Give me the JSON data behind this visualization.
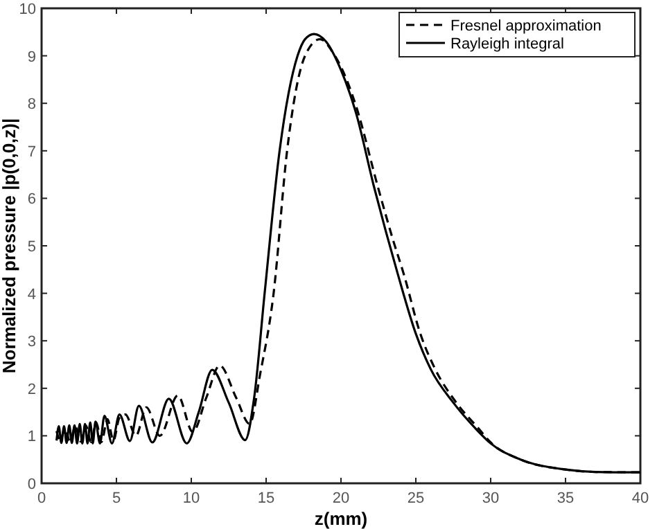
{
  "chart_data": {
    "type": "line",
    "xlabel": "z(mm)",
    "ylabel": "Normalized pressure |p(0,0,z)|",
    "xlim": [
      0,
      40
    ],
    "ylim": [
      0,
      10
    ],
    "xticks": [
      0,
      5,
      10,
      15,
      20,
      25,
      30,
      35,
      40
    ],
    "yticks": [
      0,
      1,
      2,
      3,
      4,
      5,
      6,
      7,
      8,
      9,
      10
    ],
    "grid": false,
    "legend": "top right",
    "marker": "none",
    "series": [
      {
        "name": "Fresnel approximation",
        "color": "#000000",
        "line_style": "dashed",
        "x": [
          1,
          1.25,
          1.55,
          1.9,
          2.25,
          2.6,
          2.95,
          3.3,
          3.65,
          4.0,
          4.4,
          4.8,
          5.2,
          5.6,
          6.3,
          7.0,
          7.9,
          9.1,
          10.1,
          11.0,
          11.9,
          13.0,
          13.9,
          14.6,
          15.5,
          16.4,
          17.6,
          18.6,
          19.5,
          20.5,
          21,
          22.5,
          23.5,
          24.2,
          25.3,
          26.3,
          27.7,
          29.2,
          30,
          32,
          35,
          37,
          40
        ],
        "values": [
          1.1,
          0.9,
          1.15,
          0.88,
          1.2,
          0.88,
          1.22,
          0.87,
          1.28,
          0.87,
          1.35,
          0.9,
          1.38,
          1.45,
          1.0,
          1.6,
          1.0,
          1.85,
          1.08,
          1.8,
          2.48,
          1.8,
          1.25,
          2.3,
          4.0,
          7.0,
          9.0,
          9.35,
          9.05,
          8.4,
          7.95,
          6.2,
          5.1,
          4.4,
          3.15,
          2.4,
          1.7,
          1.15,
          0.86,
          0.5,
          0.29,
          0.24,
          0.23
        ]
      },
      {
        "name": "Rayleigh integral",
        "color": "#000000",
        "line_style": "solid",
        "x": [
          1,
          1.15,
          1.32,
          1.5,
          1.67,
          1.85,
          2.02,
          2.2,
          2.37,
          2.55,
          2.72,
          2.9,
          3.07,
          3.25,
          3.42,
          3.6,
          3.9,
          4.2,
          4.7,
          5.2,
          5.9,
          6.5,
          7.4,
          8.5,
          9.7,
          10.5,
          11.4,
          12.5,
          13.6,
          14.2,
          14.9,
          15.9,
          17.1,
          17.6,
          18.2,
          19,
          20,
          20.6,
          21,
          22.2,
          23,
          23.8,
          25,
          26,
          27.5,
          29,
          30,
          32,
          35,
          37,
          40
        ],
        "values": [
          0.9,
          1.2,
          0.85,
          1.2,
          0.85,
          1.22,
          0.85,
          1.22,
          0.84,
          1.25,
          0.84,
          1.25,
          0.84,
          1.28,
          0.84,
          1.3,
          0.84,
          1.42,
          0.84,
          1.45,
          0.89,
          1.63,
          0.86,
          1.78,
          0.84,
          1.5,
          2.39,
          1.7,
          0.91,
          1.8,
          4.0,
          7.0,
          9.0,
          9.35,
          9.46,
          9.3,
          8.7,
          8.2,
          7.8,
          6.25,
          5.3,
          4.4,
          3.15,
          2.4,
          1.7,
          1.15,
          0.84,
          0.5,
          0.29,
          0.24,
          0.23
        ]
      }
    ]
  }
}
